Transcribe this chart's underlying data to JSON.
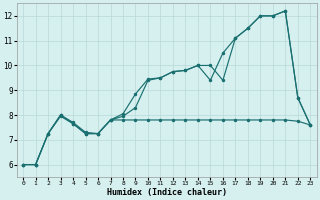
{
  "title": "",
  "xlabel": "Humidex (Indice chaleur)",
  "bg_color": "#d6f0f0",
  "grid_color": "#b8d8d8",
  "line_color": "#1a7070",
  "xlim": [
    -0.5,
    23.5
  ],
  "ylim": [
    5.5,
    12.5
  ],
  "xticks": [
    0,
    1,
    2,
    3,
    4,
    5,
    6,
    7,
    8,
    9,
    10,
    11,
    12,
    13,
    14,
    15,
    16,
    17,
    18,
    19,
    20,
    21,
    22,
    23
  ],
  "yticks": [
    6,
    7,
    8,
    9,
    10,
    11,
    12
  ],
  "line1_x": [
    0,
    1,
    2,
    3,
    4,
    5,
    6,
    7,
    8,
    9,
    10,
    11,
    12,
    13,
    14,
    15,
    16,
    17,
    18,
    19,
    20,
    21,
    22,
    23
  ],
  "line1_y": [
    6.0,
    6.0,
    7.25,
    8.0,
    7.7,
    7.3,
    7.25,
    7.8,
    8.05,
    8.85,
    9.45,
    9.5,
    9.75,
    9.8,
    10.0,
    9.4,
    10.5,
    11.1,
    11.5,
    12.0,
    12.0,
    12.2,
    8.7,
    7.6
  ],
  "line2_x": [
    0,
    1,
    2,
    3,
    4,
    5,
    6,
    7,
    8,
    9,
    10,
    11,
    12,
    13,
    14,
    15,
    16,
    17,
    18,
    19,
    20,
    21,
    22,
    23
  ],
  "line2_y": [
    6.0,
    6.0,
    7.25,
    8.0,
    7.65,
    7.25,
    7.25,
    7.8,
    7.95,
    8.3,
    9.4,
    9.5,
    9.75,
    9.8,
    10.0,
    10.0,
    9.4,
    11.1,
    11.5,
    12.0,
    12.0,
    12.2,
    8.7,
    7.6
  ],
  "line3_x": [
    0,
    1,
    2,
    3,
    4,
    5,
    6,
    7,
    8,
    9,
    10,
    11,
    12,
    13,
    14,
    15,
    16,
    17,
    18,
    19,
    20,
    21,
    22,
    23
  ],
  "line3_y": [
    6.0,
    6.0,
    7.25,
    7.95,
    7.65,
    7.25,
    7.25,
    7.8,
    7.8,
    7.8,
    7.8,
    7.8,
    7.8,
    7.8,
    7.8,
    7.8,
    7.8,
    7.8,
    7.8,
    7.8,
    7.8,
    7.8,
    7.75,
    7.6
  ]
}
